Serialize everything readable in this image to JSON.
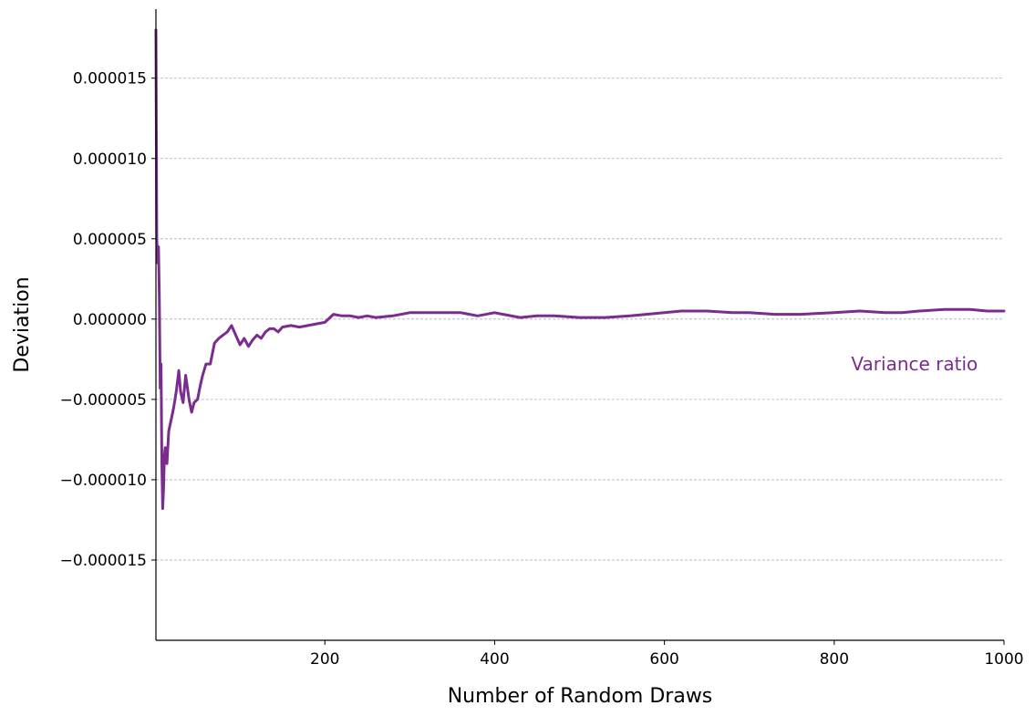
{
  "chart_data": {
    "type": "line",
    "title": "",
    "xlabel": "Number of Random Draws",
    "ylabel": "Deviation",
    "xlim": [
      1,
      1000
    ],
    "ylim": [
      -2e-05,
      1.93e-05
    ],
    "x_ticks": [
      200,
      400,
      600,
      800,
      1000
    ],
    "x_tick_labels": [
      "200",
      "400",
      "600",
      "800",
      "1000"
    ],
    "y_ticks": [
      -1.5e-05,
      -1e-05,
      -5e-06,
      0.0,
      5e-06,
      1e-05,
      1.5e-05
    ],
    "y_tick_labels": [
      "−0.000015",
      "−0.000010",
      "−0.000005",
      "0.000000",
      "0.000005",
      "0.000010",
      "0.000015"
    ],
    "grid": "horizontal-dashed",
    "annotation": {
      "text": "Variance ratio",
      "x": 820,
      "y": -2.8e-06
    },
    "colors": {
      "line": "#7b2d8e",
      "grid": "#b0b0b0",
      "axis": "#000000"
    },
    "series": [
      {
        "x": [
          1,
          2,
          3,
          4,
          5,
          6,
          7,
          8,
          9,
          10,
          11,
          12,
          14,
          16,
          18,
          20,
          22,
          25,
          28,
          30,
          33,
          36,
          40,
          43,
          46,
          50,
          53,
          56,
          60,
          65,
          70,
          75,
          80,
          85,
          90,
          95,
          100,
          105,
          110,
          115,
          120,
          125,
          130,
          135,
          140,
          145,
          150,
          160,
          170,
          180,
          190,
          200,
          210,
          220,
          230,
          240,
          250,
          260,
          280,
          300,
          320,
          340,
          360,
          380,
          400,
          410,
          430,
          450,
          470,
          500,
          530,
          560,
          600,
          620,
          650,
          680,
          700,
          730,
          760,
          800,
          830,
          860,
          880,
          900,
          930,
          960,
          980,
          1000
        ],
        "values": [
          1.8e-05,
          5e-06,
          3.5e-06,
          4.5e-06,
          1.5e-06,
          -4.3e-06,
          -2.8e-06,
          -9e-06,
          -1.18e-05,
          -1.05e-05,
          -8.5e-06,
          -8e-06,
          -9e-06,
          -7e-06,
          -6.5e-06,
          -6e-06,
          -5.5e-06,
          -4.5e-06,
          -3.2e-06,
          -4.5e-06,
          -5.2e-06,
          -3.5e-06,
          -5e-06,
          -5.8e-06,
          -5.2e-06,
          -5e-06,
          -4.2e-06,
          -3.5e-06,
          -2.8e-06,
          -2.8e-06,
          -1.5e-06,
          -1.2e-06,
          -1e-06,
          -8e-07,
          -4e-07,
          -1e-06,
          -1.6e-06,
          -1.2e-06,
          -1.7e-06,
          -1.3e-06,
          -1e-06,
          -1.2e-06,
          -8e-07,
          -6e-07,
          -6e-07,
          -8e-07,
          -5e-07,
          -4e-07,
          -5e-07,
          -4e-07,
          -3e-07,
          -2e-07,
          3e-07,
          2e-07,
          2e-07,
          1e-07,
          2e-07,
          1e-07,
          2e-07,
          4e-07,
          4e-07,
          4e-07,
          4e-07,
          2e-07,
          4e-07,
          3e-07,
          1e-07,
          2e-07,
          2e-07,
          1e-07,
          1e-07,
          2e-07,
          4e-07,
          5e-07,
          5e-07,
          4e-07,
          4e-07,
          3e-07,
          3e-07,
          4e-07,
          5e-07,
          4e-07,
          4e-07,
          5e-07,
          6e-07,
          6e-07,
          5e-07,
          5e-07
        ]
      }
    ]
  }
}
